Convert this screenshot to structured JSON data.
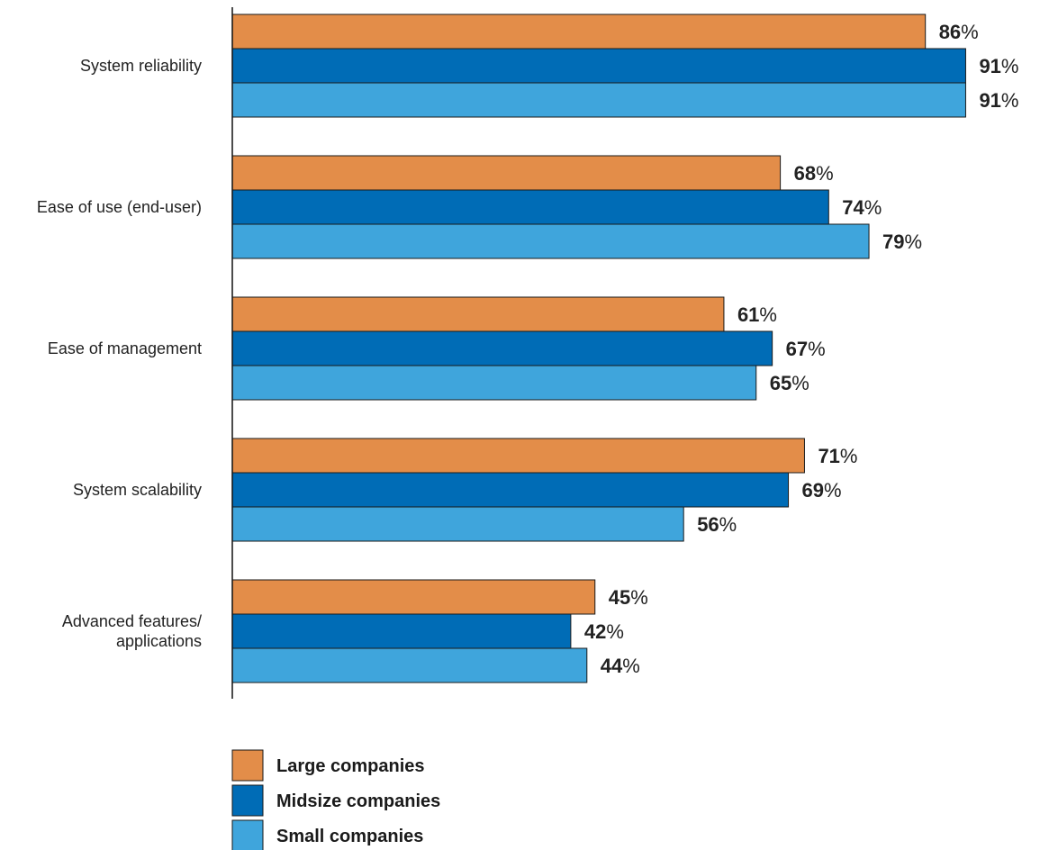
{
  "chart_data": {
    "type": "bar",
    "orientation": "horizontal",
    "title": "",
    "xlabel": "",
    "ylabel": "",
    "xlim": [
      0,
      100
    ],
    "value_suffix": "%",
    "grid": false,
    "legend_position": "bottom-left",
    "categories": [
      [
        "System reliability"
      ],
      [
        "Ease of use (end-user)"
      ],
      [
        "Ease of management"
      ],
      [
        "System scalability"
      ],
      [
        "Advanced features/",
        "applications"
      ]
    ],
    "series": [
      {
        "name": "Large companies",
        "color": "#E38D49",
        "values": [
          86,
          68,
          61,
          71,
          45
        ]
      },
      {
        "name": "Midsize companies",
        "color": "#006CB6",
        "values": [
          91,
          74,
          67,
          69,
          42
        ]
      },
      {
        "name": "Small companies",
        "color": "#3FA5DC",
        "values": [
          91,
          79,
          65,
          56,
          44
        ]
      }
    ]
  }
}
